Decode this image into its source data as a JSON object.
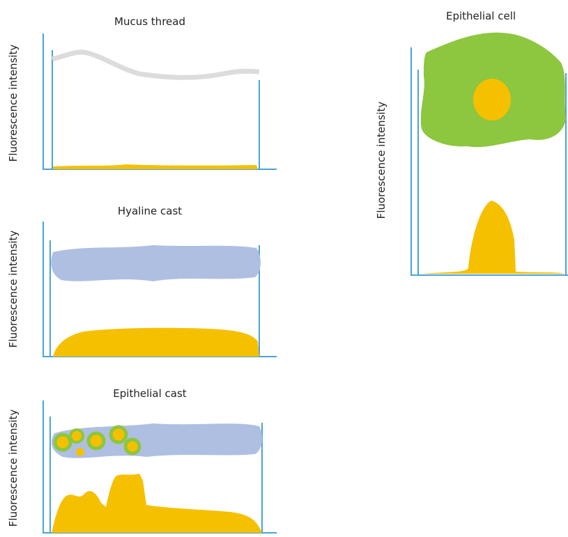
{
  "panels": [
    {
      "title": "Mucus thread",
      "y_label": "Fluorescence intensity"
    },
    {
      "title": "Hyaline cast",
      "y_label": "Fluorescence intensity"
    },
    {
      "title": "Epithelial cast",
      "y_label": "Fluorescence intensity"
    },
    {
      "title": "Epithelial cell",
      "y_label": "Fluorescence intensity"
    }
  ]
}
